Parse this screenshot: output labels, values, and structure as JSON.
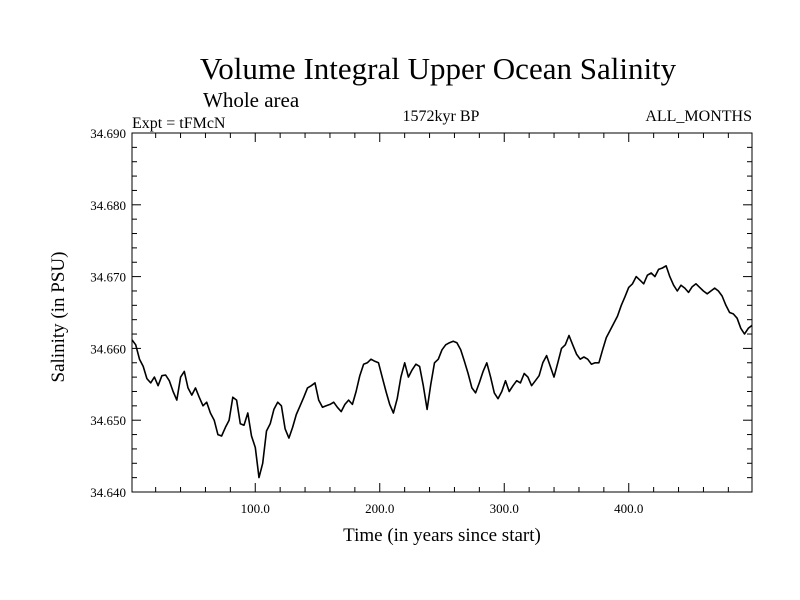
{
  "chart_data": {
    "type": "line",
    "title": "Volume Integral Upper Ocean Salinity",
    "subtitle": "Whole area",
    "header_left": "Expt = tFMcN",
    "header_center": "1572kyr BP",
    "header_right": "ALL_MONTHS",
    "xlabel": "Time (in years since start)",
    "ylabel": "Salinity (in PSU)",
    "xlim": [
      1,
      499
    ],
    "ylim": [
      34.64,
      34.69
    ],
    "xticks": [
      100,
      200,
      300,
      400
    ],
    "xtick_labels": [
      "100.0",
      "200.0",
      "300.0",
      "400.0"
    ],
    "yticks": [
      34.64,
      34.65,
      34.66,
      34.67,
      34.68,
      34.69
    ],
    "ytick_labels": [
      "34.640",
      "34.650",
      "34.660",
      "34.670",
      "34.680",
      "34.690"
    ],
    "line_color": "#000000",
    "series": [
      {
        "name": "Salinity",
        "x": [
          1,
          4,
          7,
          10,
          13,
          16,
          19,
          22,
          25,
          28,
          31,
          34,
          37,
          40,
          43,
          46,
          49,
          52,
          55,
          58,
          61,
          64,
          67,
          70,
          73,
          76,
          79,
          82,
          85,
          88,
          91,
          94,
          97,
          100,
          103,
          106,
          109,
          112,
          115,
          118,
          121,
          124,
          127,
          130,
          133,
          136,
          139,
          142,
          145,
          148,
          151,
          154,
          157,
          160,
          163,
          166,
          169,
          172,
          175,
          178,
          181,
          184,
          187,
          190,
          193,
          196,
          199,
          202,
          205,
          208,
          211,
          214,
          217,
          220,
          223,
          226,
          229,
          232,
          235,
          238,
          241,
          244,
          247,
          250,
          253,
          256,
          259,
          262,
          265,
          268,
          271,
          274,
          277,
          280,
          283,
          286,
          289,
          292,
          295,
          298,
          301,
          304,
          307,
          310,
          313,
          316,
          319,
          322,
          325,
          328,
          331,
          334,
          337,
          340,
          343,
          346,
          349,
          352,
          355,
          358,
          361,
          364,
          367,
          370,
          373,
          376,
          379,
          382,
          385,
          388,
          391,
          394,
          397,
          400,
          403,
          406,
          409,
          412,
          415,
          418,
          421,
          424,
          427,
          430,
          433,
          436,
          439,
          442,
          445,
          448,
          451,
          454,
          457,
          460,
          463,
          466,
          469,
          472,
          475,
          478,
          481,
          484,
          487,
          490,
          493,
          496,
          499
        ],
        "y": [
          34.6612,
          34.6605,
          34.6585,
          34.6575,
          34.6558,
          34.6552,
          34.656,
          34.6548,
          34.6562,
          34.6563,
          34.6555,
          34.654,
          34.6528,
          34.656,
          34.6568,
          34.6545,
          34.6535,
          34.6545,
          34.6532,
          34.652,
          34.6525,
          34.651,
          34.65,
          34.648,
          34.6478,
          34.649,
          34.65,
          34.6532,
          34.6528,
          34.6495,
          34.6493,
          34.651,
          34.6478,
          34.6462,
          34.642,
          34.644,
          34.6485,
          34.6495,
          34.6515,
          34.6525,
          34.652,
          34.6488,
          34.6475,
          34.649,
          34.6508,
          34.652,
          34.6532,
          34.6545,
          34.6548,
          34.6552,
          34.6528,
          34.6518,
          34.652,
          34.6522,
          34.6525,
          34.6518,
          34.6512,
          34.6522,
          34.6528,
          34.6522,
          34.654,
          34.6562,
          34.6578,
          34.658,
          34.6585,
          34.6582,
          34.658,
          34.656,
          34.654,
          34.6522,
          34.651,
          34.653,
          34.656,
          34.658,
          34.656,
          34.657,
          34.6578,
          34.6575,
          34.6548,
          34.6515,
          34.655,
          34.658,
          34.6585,
          34.6598,
          34.6605,
          34.6608,
          34.661,
          34.6608,
          34.6598,
          34.6582,
          34.6565,
          34.6545,
          34.6538,
          34.6552,
          34.6568,
          34.658,
          34.656,
          34.6538,
          34.653,
          34.654,
          34.6555,
          34.654,
          34.6548,
          34.6555,
          34.6552,
          34.6565,
          34.656,
          34.6548,
          34.6555,
          34.6562,
          34.658,
          34.659,
          34.6575,
          34.656,
          34.658,
          34.66,
          34.6605,
          34.6618,
          34.6605,
          34.6592,
          34.6585,
          34.6588,
          34.6585,
          34.6578,
          34.658,
          34.658,
          34.6598,
          34.6615,
          34.6625,
          34.6635,
          34.6645,
          34.666,
          34.6672,
          34.6685,
          34.669,
          34.67,
          34.6695,
          34.669,
          34.6702,
          34.6705,
          34.67,
          34.671,
          34.6712,
          34.6715,
          34.67,
          34.6688,
          34.668,
          34.6688,
          34.6684,
          34.6678,
          34.6686,
          34.669,
          34.6685,
          34.668,
          34.6676,
          34.668,
          34.6684,
          34.668,
          34.6673,
          34.666,
          34.665,
          34.6648,
          34.6642,
          34.6628,
          34.662,
          34.6628,
          34.6632
        ]
      }
    ]
  }
}
